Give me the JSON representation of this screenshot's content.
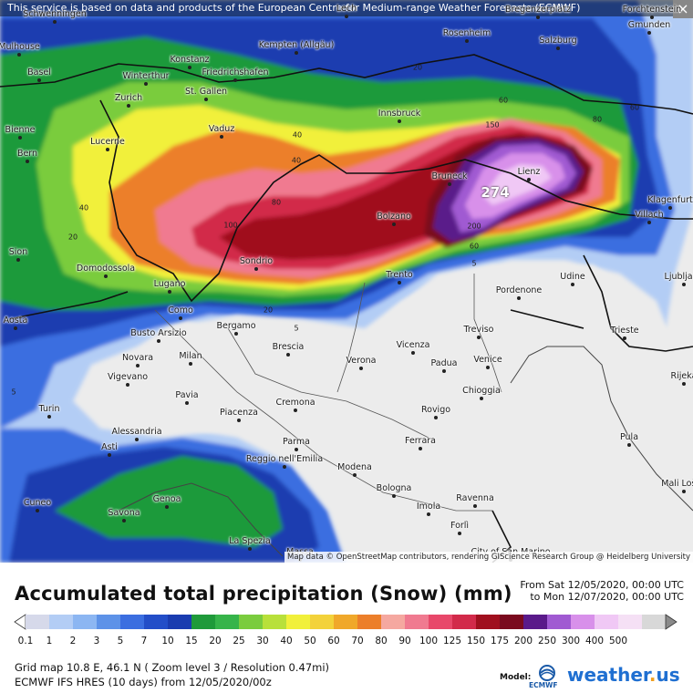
{
  "map": {
    "banner": "This service is based on data and products of the European Centre for Medium-range Weather Forecasts (ECMWF)",
    "close_symbol": "×",
    "attribution": "Map data © OpenStreetMap contributors, rendering GIScience Research Group @ Heidelberg University",
    "max_value_label": "274",
    "contour_labels": [
      "40",
      "20",
      "40",
      "20",
      "40",
      "60",
      "60",
      "80",
      "80",
      "150",
      "100",
      "200",
      "60",
      "5",
      "5",
      "20",
      "5"
    ],
    "cities": [
      "Mulhouse",
      "Basel",
      "Schwenningen",
      "Konstanz",
      "Kempten (Allgäu)",
      "Friedrichshafen",
      "Rosenheim",
      "Salzburg",
      "Gmunden",
      "Winterthur",
      "Zurich",
      "St. Gallen",
      "Vaduz",
      "Innsbruck",
      "Bienne",
      "Bern",
      "Lucerne",
      "Bruneck",
      "Lienz",
      "Klagenfurt",
      "Villach",
      "Sion",
      "Bolzano",
      "Domodossola",
      "Lugano",
      "Sondrio",
      "Trento",
      "Udine",
      "Ljubljana",
      "Pordenone",
      "Como",
      "Aosta",
      "Busto Arsizio",
      "Bergamo",
      "Treviso",
      "Trieste",
      "Novara",
      "Milan",
      "Brescia",
      "Verona",
      "Vicenza",
      "Padua",
      "Venice",
      "Vigevano",
      "Pavia",
      "Rijeka",
      "Chioggia",
      "Turin",
      "Piacenza",
      "Cremona",
      "Rovigo",
      "Alessandria",
      "Asti",
      "Parma",
      "Ferrara",
      "Pula",
      "Reggio nell'Emilia",
      "Modena",
      "Bologna",
      "Mali Lošinj",
      "Cuneo",
      "Genoa",
      "Imola",
      "Ravenna",
      "Savona",
      "Forlì",
      "La Spezia",
      "Massa",
      "City of San Marino",
      "Lech",
      "Bregenzerplatz",
      "Forchtenstein"
    ]
  },
  "legend": {
    "title": "Accumulated total precipitation (Snow) (mm)",
    "period_from": "From Sat 12/05/2020, 00:00 UTC",
    "period_to": "to Mon 12/07/2020, 00:00 UTC",
    "bins": [
      "0.1",
      "1",
      "2",
      "3",
      "5",
      "7",
      "10",
      "15",
      "20",
      "25",
      "30",
      "40",
      "50",
      "60",
      "70",
      "80",
      "90",
      "100",
      "125",
      "150",
      "175",
      "200",
      "250",
      "300",
      "400",
      "500"
    ],
    "colors": [
      "#d6d9ea",
      "#b3cdf5",
      "#8cb6f2",
      "#5d92e8",
      "#3b6ee0",
      "#234ec8",
      "#1a3cb0",
      "#1f9a3a",
      "#36b44a",
      "#7acc3e",
      "#b8e03a",
      "#f1f03a",
      "#f3d23a",
      "#f0a82a",
      "#ec7f2a",
      "#f5a8a0",
      "#f07a90",
      "#e8486a",
      "#d22a4a",
      "#a00f1e",
      "#7a0a1e",
      "#5a1a8a",
      "#a05ad2",
      "#d890ea",
      "#f0c8f5",
      "#f5e0f5",
      "#d8d8d8"
    ],
    "grid_info": "Grid map 10.8 E, 46.1 N ( Zoom level 3 / Resolution 0.47mi)",
    "model_info": "ECMWF IFS HRES (10 days) from 12/05/2020/00z",
    "model_label": "Model:",
    "model_logo_text": "ECMWF",
    "brand": "weather.us"
  }
}
